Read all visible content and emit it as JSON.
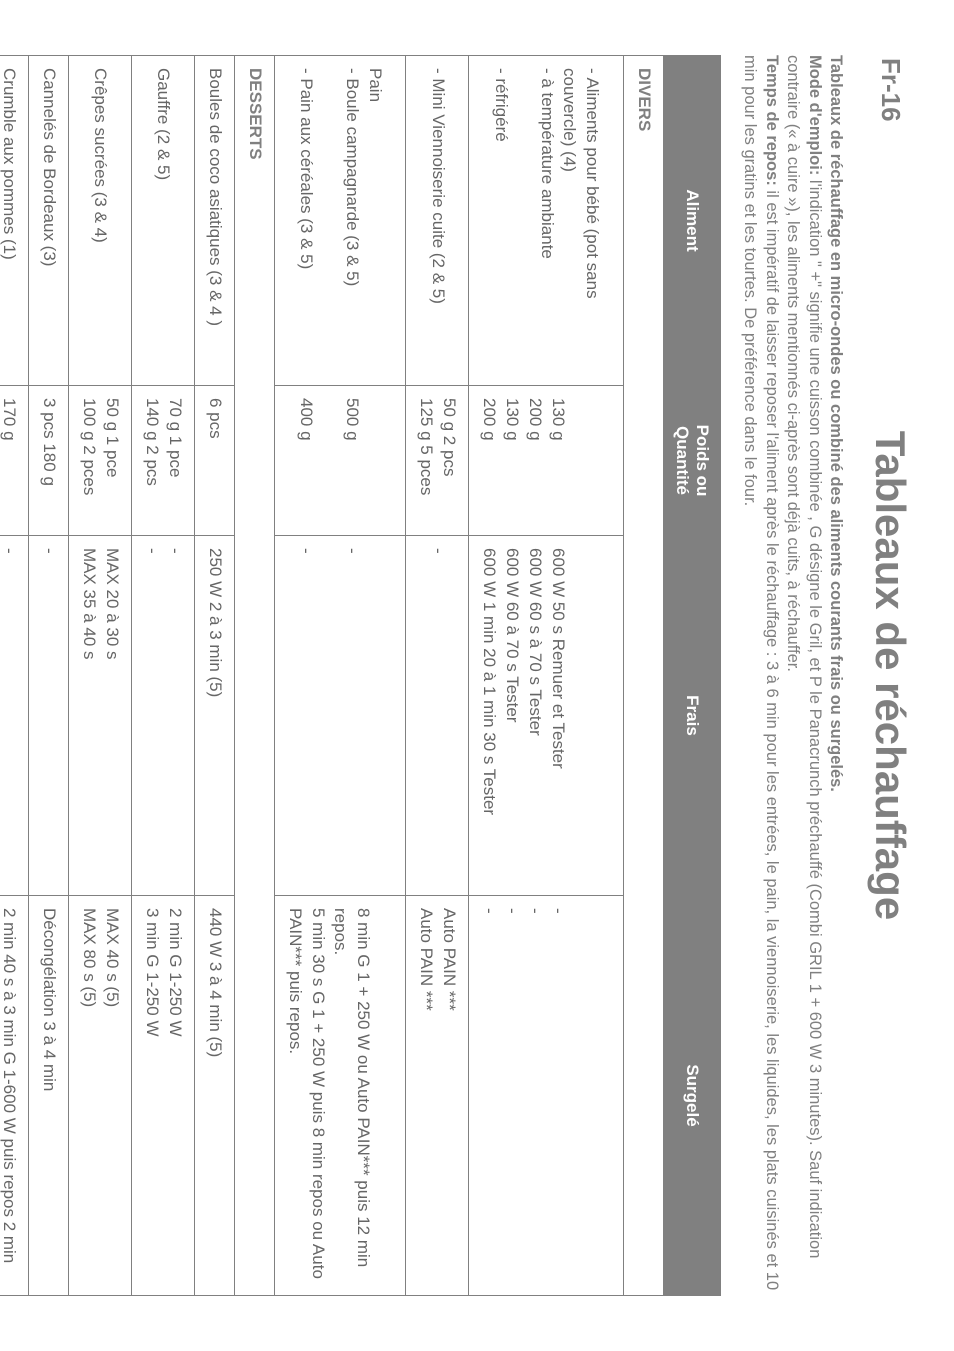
{
  "page_number": "Fr-16",
  "main_title": "Tableaux de réchauffage",
  "intro": {
    "line1_bold": "Tableaux de réchauffage en micro-ondes ou combiné des aliments courants frais ou surgelés.",
    "line2_bold": "Mode d'emploi:",
    "line2_rest": " l'indication \" +\" signifie une cuisson combinée , G désigne le Gril, et P le Panacrunch préchauffé (Combi GRIL 1 + 600 W 3 minutes). Sauf indication contraire (« à cuire »), les aliments mentionnés ci-après sont déjà cuits, à réchauffer.",
    "line3_bold": "Temps de repos:",
    "line3_rest": " il est impératif de laisser reposer l'aliment après le réchauffage : 3 à 6 min pour les entrées, le pain, la viennoiserie, les liquides, les plats cuisinés et 10 min pour les gratins et les tourtes. De préférence dans le four."
  },
  "headers": {
    "aliment": "Aliment",
    "poids": "Poids ou Quantité",
    "frais": "Frais",
    "surgele": "Surgelé"
  },
  "sections": {
    "divers": "DIVERS",
    "desserts": "DESSERTS"
  },
  "rows": {
    "r1": {
      "aliment": "- Aliments pour bébé (pot sans\ncouvercle) (4)\n- à température ambiante\n\n- réfrigéré",
      "poids": "\n\n130 g\n200 g\n130 g\n200 g",
      "frais": "\n\n600 W 50 s Remuer et Tester\n600 W 60 s à 70 s Tester\n600 W 60 à 70 s Tester\n600 W 1 min 20 à 1 min 30 s Tester",
      "surgele": "\n\n-\n-\n-\n-"
    },
    "r2": {
      "aliment": "- Mini Viennoiserie cuite (2 & 5)",
      "poids": "50 g 2 pcs\n125 g 5 pces",
      "frais": "-",
      "surgele": "Auto PAIN ***\nAuto PAIN ***"
    },
    "r3": {
      "aliment": "Pain\n- Boule campagnarde  (3 & 5)\n\n- Pain aux céréales (3 & 5)",
      "poids": "\n500 g\n\n400 g",
      "frais": "\n-\n\n-",
      "surgele": "\n8 min G 1 + 250 W ou Auto PAIN*** puis 12 min repos.\n5 min 30 s G 1 + 250 W puis 8 min repos ou Auto PAIN*** puis repos."
    },
    "r4": {
      "aliment": "Boules de coco asiatiques (3 & 4 )",
      "poids": "6 pcs",
      "frais": "250 W 2 à 3 min (5)",
      "surgele": "440 W 3 à 4 min (5)"
    },
    "r5": {
      "aliment": "Gauffre (2 & 5)",
      "poids": "70 g 1 pce\n140 g 2 pcs",
      "frais": "-\n-",
      "surgele": "2 min G 1-250 W\n3 min G 1-250 W"
    },
    "r6": {
      "aliment": "Crêpes sucrées (3 & 4)",
      "poids": "50 g 1 pce\n100 g 2 pces",
      "frais": "MAX 20 à 30 s\nMAX 35 à 40 s",
      "surgele": "MAX 40 s (5)\nMAX 80 s (5)"
    },
    "r7": {
      "aliment": "Cannelés de Bordeaux (3)",
      "poids": "3 pcs 180 g",
      "frais": "-",
      "surgele": "Décongélation  3 à 4 min"
    },
    "r8": {
      "aliment": "Crumble aux pommes (1)",
      "poids": "170 g",
      "frais": "-",
      "surgele": "2 min 40 s à 3 min G 1-600 W puis repos 2 min"
    }
  }
}
